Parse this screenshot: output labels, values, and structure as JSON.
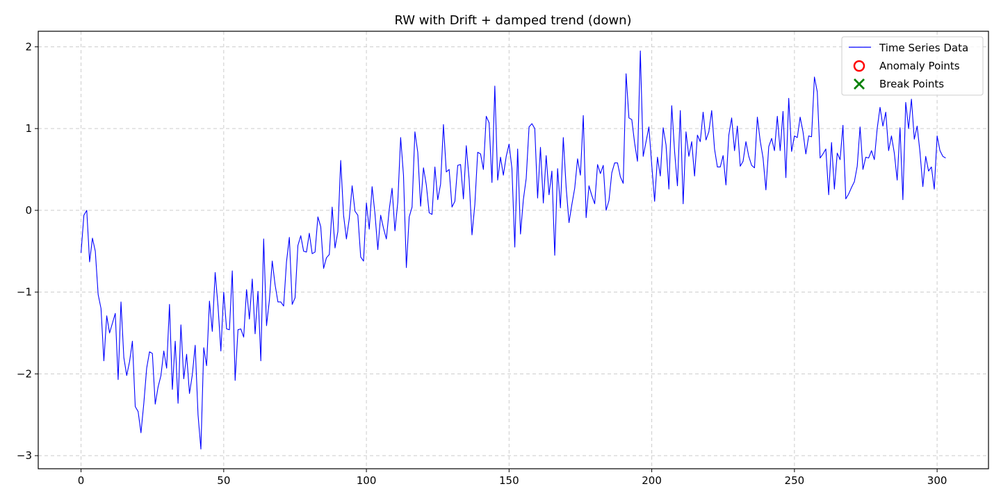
{
  "chart_data": {
    "type": "line",
    "title": "RW with Drift + damped trend (down)",
    "xlabel": "",
    "ylabel": "",
    "xlim": [
      -15,
      318
    ],
    "ylim": [
      -3.16,
      2.19
    ],
    "x_ticks": [
      0,
      50,
      100,
      150,
      200,
      250,
      300
    ],
    "y_ticks": [
      -3,
      -2,
      -1,
      0,
      1,
      2
    ],
    "grid": true,
    "legend_position": "upper right",
    "series": [
      {
        "name": "Time Series Data",
        "color": "#0000ff",
        "x_start": 0,
        "values": [
          -0.52,
          -0.06,
          0.0,
          -0.63,
          -0.34,
          -0.5,
          -1.03,
          -1.2,
          -1.84,
          -1.29,
          -1.5,
          -1.38,
          -1.26,
          -2.07,
          -1.12,
          -1.8,
          -2.02,
          -1.85,
          -1.6,
          -2.4,
          -2.46,
          -2.72,
          -2.36,
          -1.93,
          -1.73,
          -1.75,
          -2.37,
          -2.16,
          -2.02,
          -1.72,
          -1.93,
          -1.15,
          -2.19,
          -1.6,
          -2.36,
          -1.4,
          -2.06,
          -1.76,
          -2.24,
          -2.01,
          -1.65,
          -2.5,
          -2.92,
          -1.68,
          -1.9,
          -1.11,
          -1.48,
          -0.76,
          -1.17,
          -1.72,
          -1.0,
          -1.45,
          -1.46,
          -0.74,
          -2.08,
          -1.46,
          -1.45,
          -1.55,
          -0.97,
          -1.33,
          -0.84,
          -1.51,
          -0.99,
          -1.84,
          -0.35,
          -1.41,
          -1.1,
          -0.62,
          -0.91,
          -1.12,
          -1.12,
          -1.17,
          -0.63,
          -0.33,
          -1.15,
          -1.07,
          -0.43,
          -0.31,
          -0.5,
          -0.51,
          -0.28,
          -0.53,
          -0.51,
          -0.08,
          -0.2,
          -0.71,
          -0.58,
          -0.54,
          0.04,
          -0.46,
          -0.26,
          0.61,
          -0.06,
          -0.35,
          -0.1,
          0.3,
          -0.01,
          -0.06,
          -0.57,
          -0.62,
          0.09,
          -0.23,
          0.29,
          -0.04,
          -0.48,
          -0.06,
          -0.22,
          -0.35,
          0.01,
          0.27,
          -0.25,
          0.1,
          0.89,
          0.43,
          -0.7,
          -0.08,
          0.04,
          0.96,
          0.71,
          0.05,
          0.52,
          0.31,
          -0.03,
          -0.05,
          0.53,
          0.13,
          0.32,
          1.05,
          0.47,
          0.5,
          0.04,
          0.11,
          0.55,
          0.56,
          0.14,
          0.79,
          0.38,
          -0.3,
          0.07,
          0.71,
          0.69,
          0.5,
          1.15,
          1.07,
          0.34,
          1.52,
          0.37,
          0.65,
          0.43,
          0.66,
          0.81,
          0.51,
          -0.45,
          0.75,
          -0.29,
          0.13,
          0.39,
          1.02,
          1.06,
          1.0,
          0.15,
          0.77,
          0.09,
          0.67,
          0.19,
          0.48,
          -0.55,
          0.51,
          0.03,
          0.89,
          0.28,
          -0.15,
          0.07,
          0.27,
          0.63,
          0.43,
          1.16,
          -0.09,
          0.3,
          0.18,
          0.08,
          0.56,
          0.45,
          0.55,
          0.0,
          0.12,
          0.46,
          0.58,
          0.58,
          0.41,
          0.33,
          1.67,
          1.13,
          1.11,
          0.82,
          0.6,
          1.95,
          0.66,
          0.84,
          1.02,
          0.55,
          0.11,
          0.65,
          0.42,
          1.01,
          0.8,
          0.26,
          1.28,
          0.72,
          0.3,
          1.22,
          0.08,
          0.96,
          0.66,
          0.84,
          0.42,
          0.92,
          0.84,
          1.2,
          0.86,
          0.96,
          1.22,
          0.75,
          0.53,
          0.53,
          0.67,
          0.31,
          0.92,
          1.13,
          0.73,
          1.03,
          0.54,
          0.6,
          0.84,
          0.66,
          0.55,
          0.52,
          1.14,
          0.85,
          0.64,
          0.25,
          0.78,
          0.88,
          0.73,
          1.15,
          0.73,
          1.21,
          0.4,
          1.37,
          0.72,
          0.91,
          0.89,
          1.14,
          0.96,
          0.69,
          0.91,
          0.9,
          1.63,
          1.45,
          0.64,
          0.69,
          0.75,
          0.19,
          0.83,
          0.26,
          0.7,
          0.62,
          1.04,
          0.14,
          0.2,
          0.28,
          0.35,
          0.54,
          1.02,
          0.5,
          0.65,
          0.64,
          0.73,
          0.62,
          1.0,
          1.26,
          1.03,
          1.2,
          0.73,
          0.91,
          0.7,
          0.37,
          1.01,
          0.13,
          1.32,
          1.0,
          1.36,
          0.87,
          1.03,
          0.71,
          0.29,
          0.66,
          0.48,
          0.53,
          0.26,
          0.91,
          0.73,
          0.66,
          0.64
        ]
      }
    ],
    "legend": [
      {
        "label": "Time Series Data",
        "marker": "line",
        "color": "#0000ff"
      },
      {
        "label": "Anomaly Points",
        "marker": "circle",
        "color": "#ff0000"
      },
      {
        "label": "Break Points",
        "marker": "x",
        "color": "#008000"
      }
    ]
  }
}
